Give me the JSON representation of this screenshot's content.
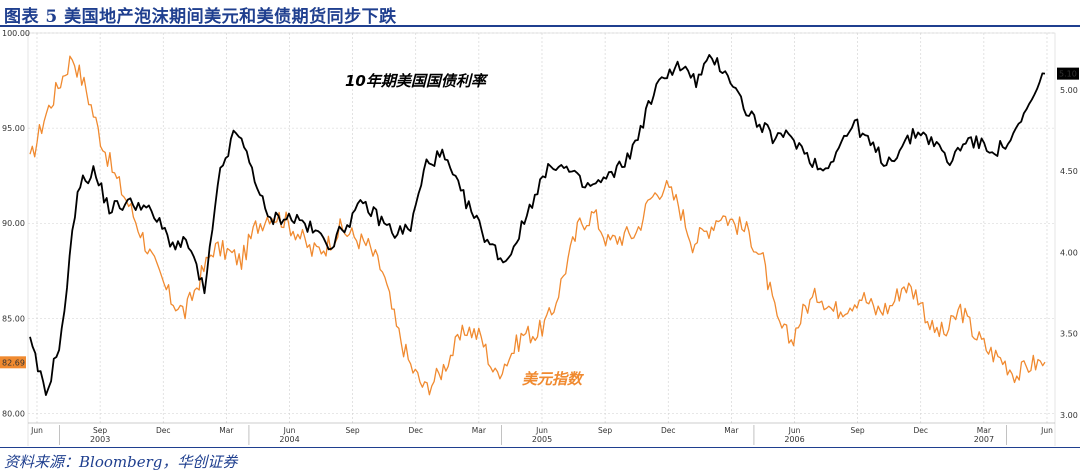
{
  "header": {
    "title": "图表 5 美国地产泡沫期间美元和美债期货同步下跌"
  },
  "footer": {
    "source": "资料来源：Bloomberg，华创证券"
  },
  "chart_data": {
    "type": "line",
    "title": "",
    "annotations": {
      "yield_label": "10年期美国国债利率",
      "dollar_label": "美元指数"
    },
    "left_axis": {
      "ylim": [
        79.5,
        100.0
      ],
      "ticks": [
        "100.00",
        "95.00",
        "90.00",
        "85.00",
        "80.00"
      ]
    },
    "right_axis": {
      "ylim": [
        2.95,
        5.35
      ],
      "ticks": [
        "5.00",
        "4.50",
        "4.00",
        "3.50",
        "3.00"
      ]
    },
    "x_ticks": [
      "Jun",
      "Sep",
      "Dec",
      "Mar",
      "Jun",
      "Sep",
      "Dec",
      "Mar",
      "Jun",
      "Sep",
      "Dec",
      "Mar",
      "Jun",
      "Sep",
      "Dec",
      "Mar",
      "Jun"
    ],
    "years": [
      {
        "label": "2003",
        "tick": 1
      },
      {
        "label": "2004",
        "tick": 4
      },
      {
        "label": "2005",
        "tick": 8
      },
      {
        "label": "2006",
        "tick": 12
      },
      {
        "label": "2007",
        "tick": 15
      }
    ],
    "last_values": {
      "dollar": "82.69",
      "yield": "5.10"
    },
    "series": [
      {
        "name": "美元指数",
        "axis": "left",
        "color": "#f08a30",
        "values": [
          93.2,
          95.5,
          97.2,
          98.8,
          97.0,
          94.5,
          92.5,
          91.0,
          89.3,
          87.5,
          86.0,
          85.3,
          87.0,
          88.7,
          88.5,
          88.0,
          89.8,
          90.5,
          90.2,
          89.5,
          88.5,
          88.8,
          89.7,
          89.3,
          88.8,
          87.5,
          84.5,
          82.5,
          81.3,
          82.0,
          83.3,
          84.5,
          84.0,
          82.0,
          83.0,
          84.2,
          84.2,
          85.2,
          87.7,
          90.0,
          90.5,
          89.0,
          89.3,
          89.5,
          91.3,
          92.0,
          91.0,
          89.0,
          89.6,
          90.5,
          90.0,
          89.5,
          88.0,
          84.8,
          83.8,
          85.6,
          86.3,
          85.4,
          85.7,
          86.2,
          85.4,
          85.6,
          86.8,
          86.2,
          84.4,
          84.2,
          85.5,
          84.2,
          83.3,
          82.8,
          82.0,
          82.6,
          82.7
        ]
      },
      {
        "name": "10年期美国国债利率",
        "axis": "right",
        "color": "#000000",
        "values": [
          3.45,
          3.12,
          3.5,
          4.4,
          4.5,
          4.27,
          4.3,
          4.3,
          4.2,
          4.05,
          4.05,
          3.75,
          4.5,
          4.75,
          4.52,
          4.2,
          4.22,
          4.2,
          4.12,
          4.05,
          4.18,
          4.3,
          4.21,
          4.12,
          4.15,
          4.55,
          4.6,
          4.4,
          4.22,
          4.05,
          3.94,
          4.15,
          4.4,
          4.55,
          4.5,
          4.4,
          4.43,
          4.5,
          4.63,
          4.9,
          5.1,
          5.15,
          5.05,
          5.2,
          5.1,
          4.9,
          4.78,
          4.7,
          4.72,
          4.6,
          4.5,
          4.65,
          4.8,
          4.66,
          4.55,
          4.65,
          4.75,
          4.68,
          4.55,
          4.7,
          4.66,
          4.63,
          4.7,
          4.9,
          5.1
        ]
      }
    ]
  }
}
